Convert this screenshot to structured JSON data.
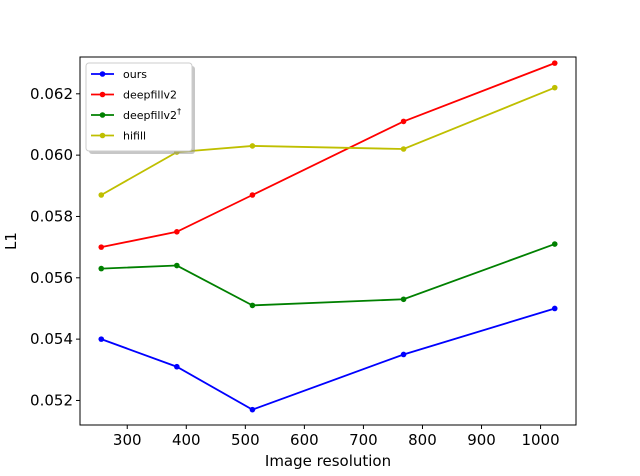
{
  "chart_data": {
    "type": "line",
    "title": "",
    "xlabel": "Image resolution",
    "ylabel": "L1",
    "xlim": [
      220,
      1060
    ],
    "ylim": [
      0.0512,
      0.0632
    ],
    "xticks": [
      300,
      400,
      500,
      600,
      700,
      800,
      900,
      1000
    ],
    "yticks": [
      0.052,
      0.054,
      0.056,
      0.058,
      0.06,
      0.062
    ],
    "ytick_labels": [
      "0.052",
      "0.054",
      "0.056",
      "0.058",
      "0.060",
      "0.062"
    ],
    "grid": false,
    "legend_position": "top-left",
    "x": [
      256,
      384,
      512,
      768,
      1024
    ],
    "series": [
      {
        "name": "ours",
        "color": "#0000ff",
        "values": [
          0.054,
          0.0531,
          0.0517,
          0.0535,
          0.055
        ]
      },
      {
        "name": "deepfillv2",
        "color": "#ff0000",
        "values": [
          0.057,
          0.0575,
          0.0587,
          0.0611,
          0.063
        ]
      },
      {
        "name": "deepfillv2",
        "superscript": "†",
        "color": "#008000",
        "values": [
          0.0563,
          0.0564,
          0.0551,
          0.0553,
          0.0571
        ]
      },
      {
        "name": "hifill",
        "color": "#bfbf00",
        "values": [
          0.0587,
          0.0601,
          0.0603,
          0.0602,
          0.0622
        ]
      }
    ]
  }
}
